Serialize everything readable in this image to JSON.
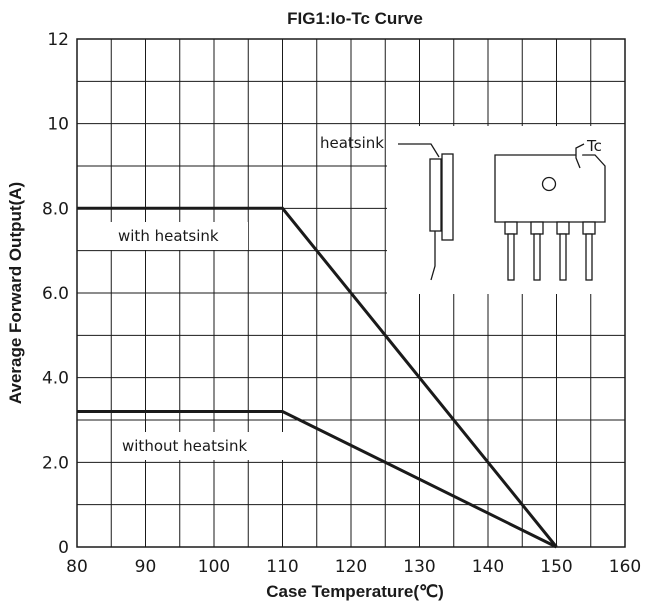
{
  "chart_data": {
    "type": "line",
    "title": "FIG1:Io-Tc Curve",
    "xlabel": "Case Temperature(℃)",
    "ylabel": "Average Forward Output(A)",
    "xlim": [
      80,
      160
    ],
    "ylim": [
      0,
      12
    ],
    "x_ticks": [
      80,
      90,
      100,
      110,
      120,
      130,
      140,
      150,
      160
    ],
    "x_tick_labels": [
      "80",
      "90",
      "100",
      "110",
      "120",
      "130",
      "140",
      "150",
      "160"
    ],
    "y_ticks": [
      0,
      2,
      4,
      6,
      8,
      10,
      12
    ],
    "y_tick_labels": [
      "0",
      "2.0",
      "4.0",
      "6.0",
      "8.0",
      "10",
      "12"
    ],
    "grid": true,
    "x_minor_step": 5,
    "y_minor_step": 1,
    "series": [
      {
        "label": "with heatsink",
        "points": [
          [
            80,
            8.0
          ],
          [
            110,
            8.0
          ],
          [
            150,
            0
          ]
        ],
        "color": "#1a1a1a"
      },
      {
        "label": "without heatsink",
        "points": [
          [
            80,
            3.2
          ],
          [
            110,
            3.2
          ],
          [
            150,
            0
          ]
        ],
        "color": "#1a1a1a"
      }
    ],
    "annotations": {
      "heatsink": "heatsink",
      "tc": "Tc"
    }
  }
}
